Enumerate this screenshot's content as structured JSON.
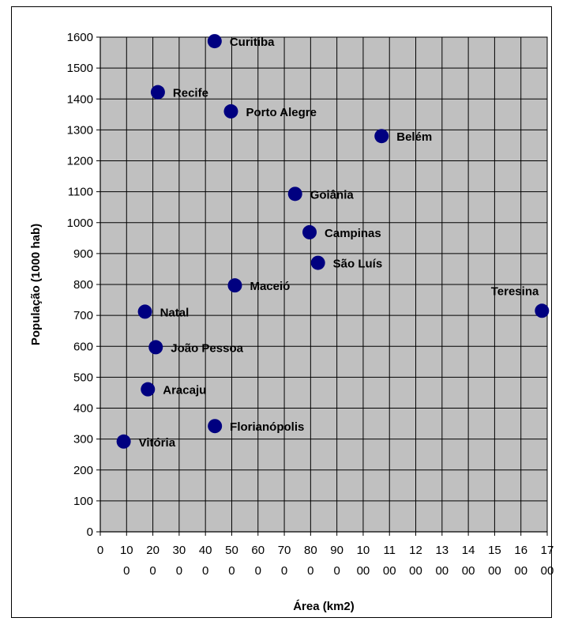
{
  "chart_data": {
    "type": "scatter",
    "title": "",
    "xlabel": "Área (km2)",
    "ylabel": "População (1000 hab)",
    "xlim": [
      0,
      1700
    ],
    "ylim": [
      0,
      1600
    ],
    "x_ticks": [
      0,
      100,
      200,
      300,
      400,
      500,
      600,
      700,
      800,
      900,
      1000,
      1100,
      1200,
      1300,
      1400,
      1500,
      1600,
      1700
    ],
    "x_tick_labels": [
      [
        "0",
        ""
      ],
      [
        "10",
        "0"
      ],
      [
        "20",
        "0"
      ],
      [
        "30",
        "0"
      ],
      [
        "40",
        "0"
      ],
      [
        "50",
        "0"
      ],
      [
        "60",
        "0"
      ],
      [
        "70",
        "0"
      ],
      [
        "80",
        "0"
      ],
      [
        "90",
        "0"
      ],
      [
        "10",
        "00"
      ],
      [
        "11",
        "00"
      ],
      [
        "12",
        "00"
      ],
      [
        "13",
        "00"
      ],
      [
        "14",
        "00"
      ],
      [
        "15",
        "00"
      ],
      [
        "16",
        "00"
      ],
      [
        "17",
        "00"
      ]
    ],
    "y_ticks": [
      0,
      100,
      200,
      300,
      400,
      500,
      600,
      700,
      800,
      900,
      1000,
      1100,
      1200,
      1300,
      1400,
      1500,
      1600
    ],
    "y_tick_labels": [
      "0",
      "100",
      "200",
      "300",
      "400",
      "500",
      "600",
      "700",
      "800",
      "900",
      "1000",
      "1100",
      "1200",
      "1300",
      "1400",
      "1500",
      "1600"
    ],
    "grid": true,
    "plot_background": "#c0c0c0",
    "marker_color": "#000080",
    "points": [
      {
        "label": "Curitiba",
        "x": 435,
        "y": 1587,
        "label_side": "right"
      },
      {
        "label": "Recife",
        "x": 219,
        "y": 1422,
        "label_side": "right"
      },
      {
        "label": "Porto Alegre",
        "x": 497,
        "y": 1360,
        "label_side": "right"
      },
      {
        "label": "Belém",
        "x": 1070,
        "y": 1280,
        "label_side": "right"
      },
      {
        "label": "Goiânia",
        "x": 741,
        "y": 1093,
        "label_side": "right"
      },
      {
        "label": "Campinas",
        "x": 796,
        "y": 969,
        "label_side": "right"
      },
      {
        "label": "São Luís",
        "x": 828,
        "y": 870,
        "label_side": "right"
      },
      {
        "label": "Maceió",
        "x": 512,
        "y": 797,
        "label_side": "right"
      },
      {
        "label": "Teresina",
        "x": 1680,
        "y": 715,
        "label_side": "above-left"
      },
      {
        "label": "Natal",
        "x": 170,
        "y": 712,
        "label_side": "right"
      },
      {
        "label": "João Pessoa",
        "x": 211,
        "y": 597,
        "label_side": "right"
      },
      {
        "label": "Aracaju",
        "x": 181,
        "y": 461,
        "label_side": "right"
      },
      {
        "label": "Florianópolis",
        "x": 436,
        "y": 342,
        "label_side": "right"
      },
      {
        "label": "Vitória",
        "x": 89,
        "y": 292,
        "label_side": "right"
      }
    ]
  }
}
